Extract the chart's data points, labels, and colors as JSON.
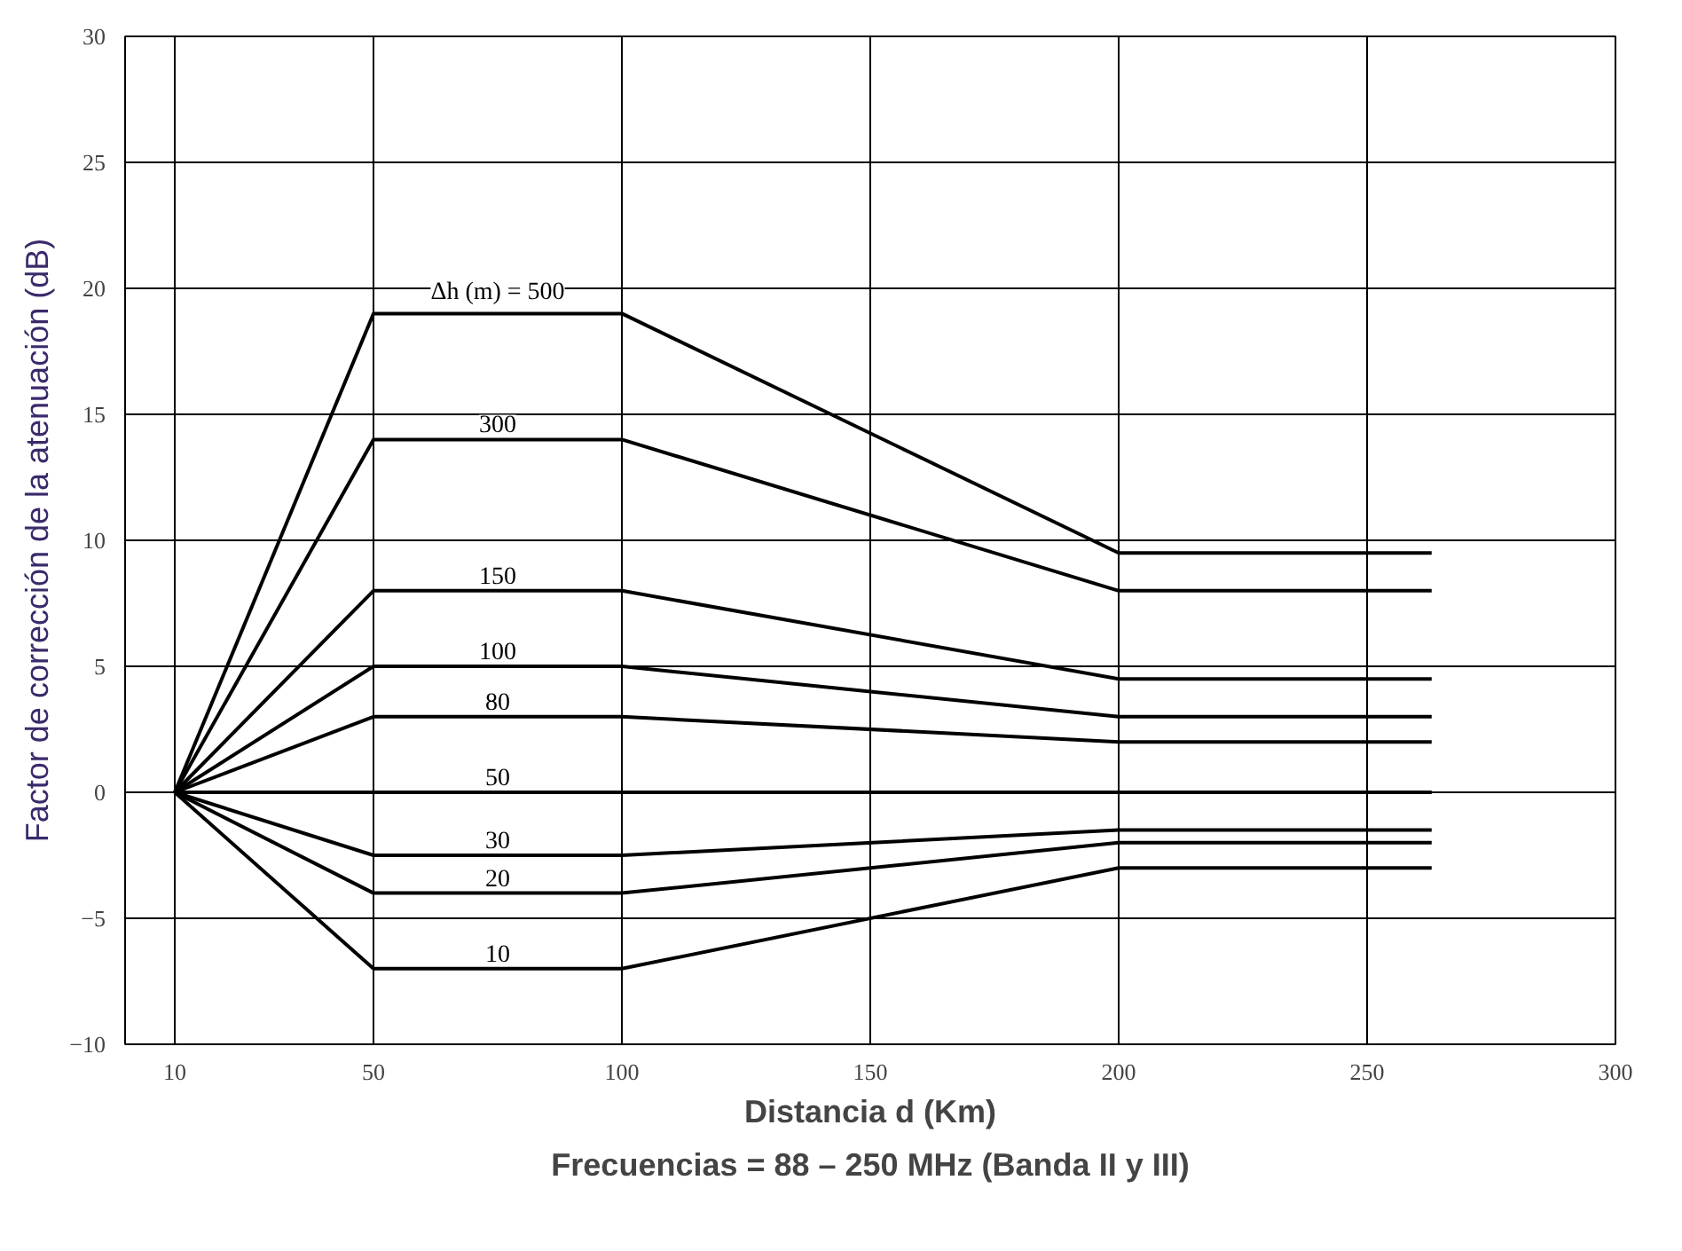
{
  "chart_data": {
    "type": "line",
    "xlabel": "Distancia d (Km)",
    "ylabel": "Factor de corrección de la atenuación (dB)",
    "annotations": [
      "Frecuencias = 88 – 250 MHz (Banda II y III)"
    ],
    "x": [
      10,
      50,
      100,
      200,
      263
    ],
    "xlim": [
      0,
      300
    ],
    "xticks": [
      10,
      50,
      100,
      150,
      200,
      250,
      300
    ],
    "ylim": [
      -10,
      30
    ],
    "yticks": [
      {
        "value": -10,
        "label": "−10"
      },
      {
        "value": -5,
        "label": "−5"
      },
      0,
      5,
      10,
      15,
      20,
      25,
      30
    ],
    "grid": true,
    "marker": "none",
    "line_style": "solid",
    "series": [
      {
        "name": "Δh (m) = 500",
        "color": "#000000",
        "values": [
          0,
          19,
          19,
          9.5,
          9.5
        ]
      },
      {
        "name": "300",
        "color": "#000000",
        "values": [
          0,
          14,
          14,
          8,
          8
        ]
      },
      {
        "name": "150",
        "color": "#000000",
        "values": [
          0,
          8,
          8,
          4.5,
          4.5
        ]
      },
      {
        "name": "100",
        "color": "#000000",
        "values": [
          0,
          5,
          5,
          3,
          3
        ]
      },
      {
        "name": "80",
        "color": "#000000",
        "values": [
          0,
          3,
          3,
          2,
          2
        ]
      },
      {
        "name": "50",
        "color": "#000000",
        "values": [
          0,
          0,
          0,
          0,
          0
        ]
      },
      {
        "name": "30",
        "color": "#000000",
        "values": [
          0,
          -2.5,
          -2.5,
          -1.5,
          -1.5
        ]
      },
      {
        "name": "20",
        "color": "#000000",
        "values": [
          0,
          -4,
          -4,
          -2,
          -2
        ]
      },
      {
        "name": "10",
        "color": "#000000",
        "values": [
          0,
          -7,
          -7,
          -3,
          -3
        ]
      }
    ]
  }
}
